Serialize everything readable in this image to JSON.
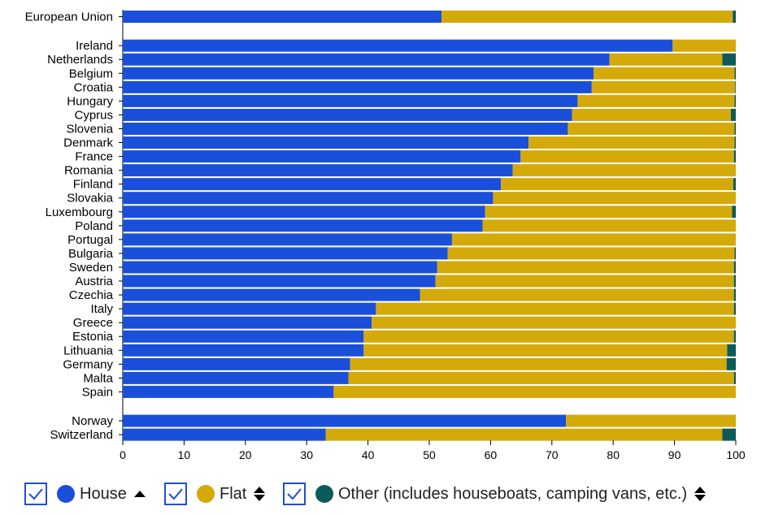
{
  "chart_data": {
    "type": "bar",
    "orientation": "horizontal",
    "stacked": true,
    "categories": [
      "European Union",
      "Ireland",
      "Netherlands",
      "Belgium",
      "Croatia",
      "Hungary",
      "Cyprus",
      "Slovenia",
      "Denmark",
      "France",
      "Romania",
      "Finland",
      "Slovakia",
      "Luxembourg",
      "Poland",
      "Portugal",
      "Bulgaria",
      "Sweden",
      "Austria",
      "Czechia",
      "Italy",
      "Greece",
      "Estonia",
      "Lithuania",
      "Germany",
      "Malta",
      "Spain",
      "Norway",
      "Switzerland"
    ],
    "series": [
      {
        "name": "House",
        "color": "#1a4fd9",
        "values": [
          52.0,
          89.7,
          79.4,
          76.8,
          76.5,
          74.2,
          73.3,
          72.6,
          66.2,
          64.9,
          63.6,
          61.7,
          60.4,
          59.1,
          58.7,
          53.7,
          53.0,
          51.3,
          51.0,
          48.5,
          41.3,
          40.6,
          39.3,
          39.3,
          37.1,
          36.8,
          34.4,
          72.3,
          33.1
        ]
      },
      {
        "name": "Flat",
        "color": "#d4a90a",
        "values": [
          47.5,
          10.3,
          18.4,
          23.0,
          23.4,
          25.6,
          25.9,
          27.2,
          33.6,
          34.8,
          36.4,
          37.9,
          39.6,
          40.3,
          41.3,
          46.3,
          46.8,
          48.4,
          48.7,
          51.2,
          58.4,
          59.4,
          60.4,
          59.3,
          61.4,
          62.9,
          65.6,
          27.7,
          64.7
        ]
      },
      {
        "name": "Other (includes houseboats, camping vans, etc.)",
        "color": "#0d5a5a",
        "values": [
          0.5,
          0.0,
          2.2,
          0.2,
          0.1,
          0.2,
          0.8,
          0.2,
          0.2,
          0.3,
          0.0,
          0.4,
          0.0,
          0.6,
          0.0,
          0.0,
          0.2,
          0.3,
          0.3,
          0.3,
          0.3,
          0.0,
          0.3,
          1.4,
          1.5,
          0.3,
          0.0,
          0.0,
          2.2
        ]
      }
    ],
    "groups": [
      [
        "European Union"
      ],
      [
        "Ireland",
        "Netherlands",
        "Belgium",
        "Croatia",
        "Hungary",
        "Cyprus",
        "Slovenia",
        "Denmark",
        "France",
        "Romania",
        "Finland",
        "Slovakia",
        "Luxembourg",
        "Poland",
        "Portugal",
        "Bulgaria",
        "Sweden",
        "Austria",
        "Czechia",
        "Italy",
        "Greece",
        "Estonia",
        "Lithuania",
        "Germany",
        "Malta",
        "Spain"
      ],
      [
        "Norway",
        "Switzerland"
      ]
    ],
    "xlim": [
      0,
      100
    ],
    "xticks": [
      0,
      10,
      20,
      30,
      40,
      50,
      60,
      70,
      80,
      90,
      100
    ],
    "title": "",
    "xlabel": "",
    "ylabel": "",
    "grid": false,
    "legend_position": "bottom"
  },
  "legend": {
    "items": [
      {
        "label": "House",
        "color": "#1a4fd9",
        "sort": "asc",
        "checked": true
      },
      {
        "label": "Flat",
        "color": "#d4a90a",
        "sort": "both",
        "checked": true
      },
      {
        "label": "Other (includes houseboats, camping vans, etc.)",
        "color": "#0d5a5a",
        "sort": "both",
        "checked": true
      }
    ],
    "checkbox_color": "#1f4fd6"
  }
}
